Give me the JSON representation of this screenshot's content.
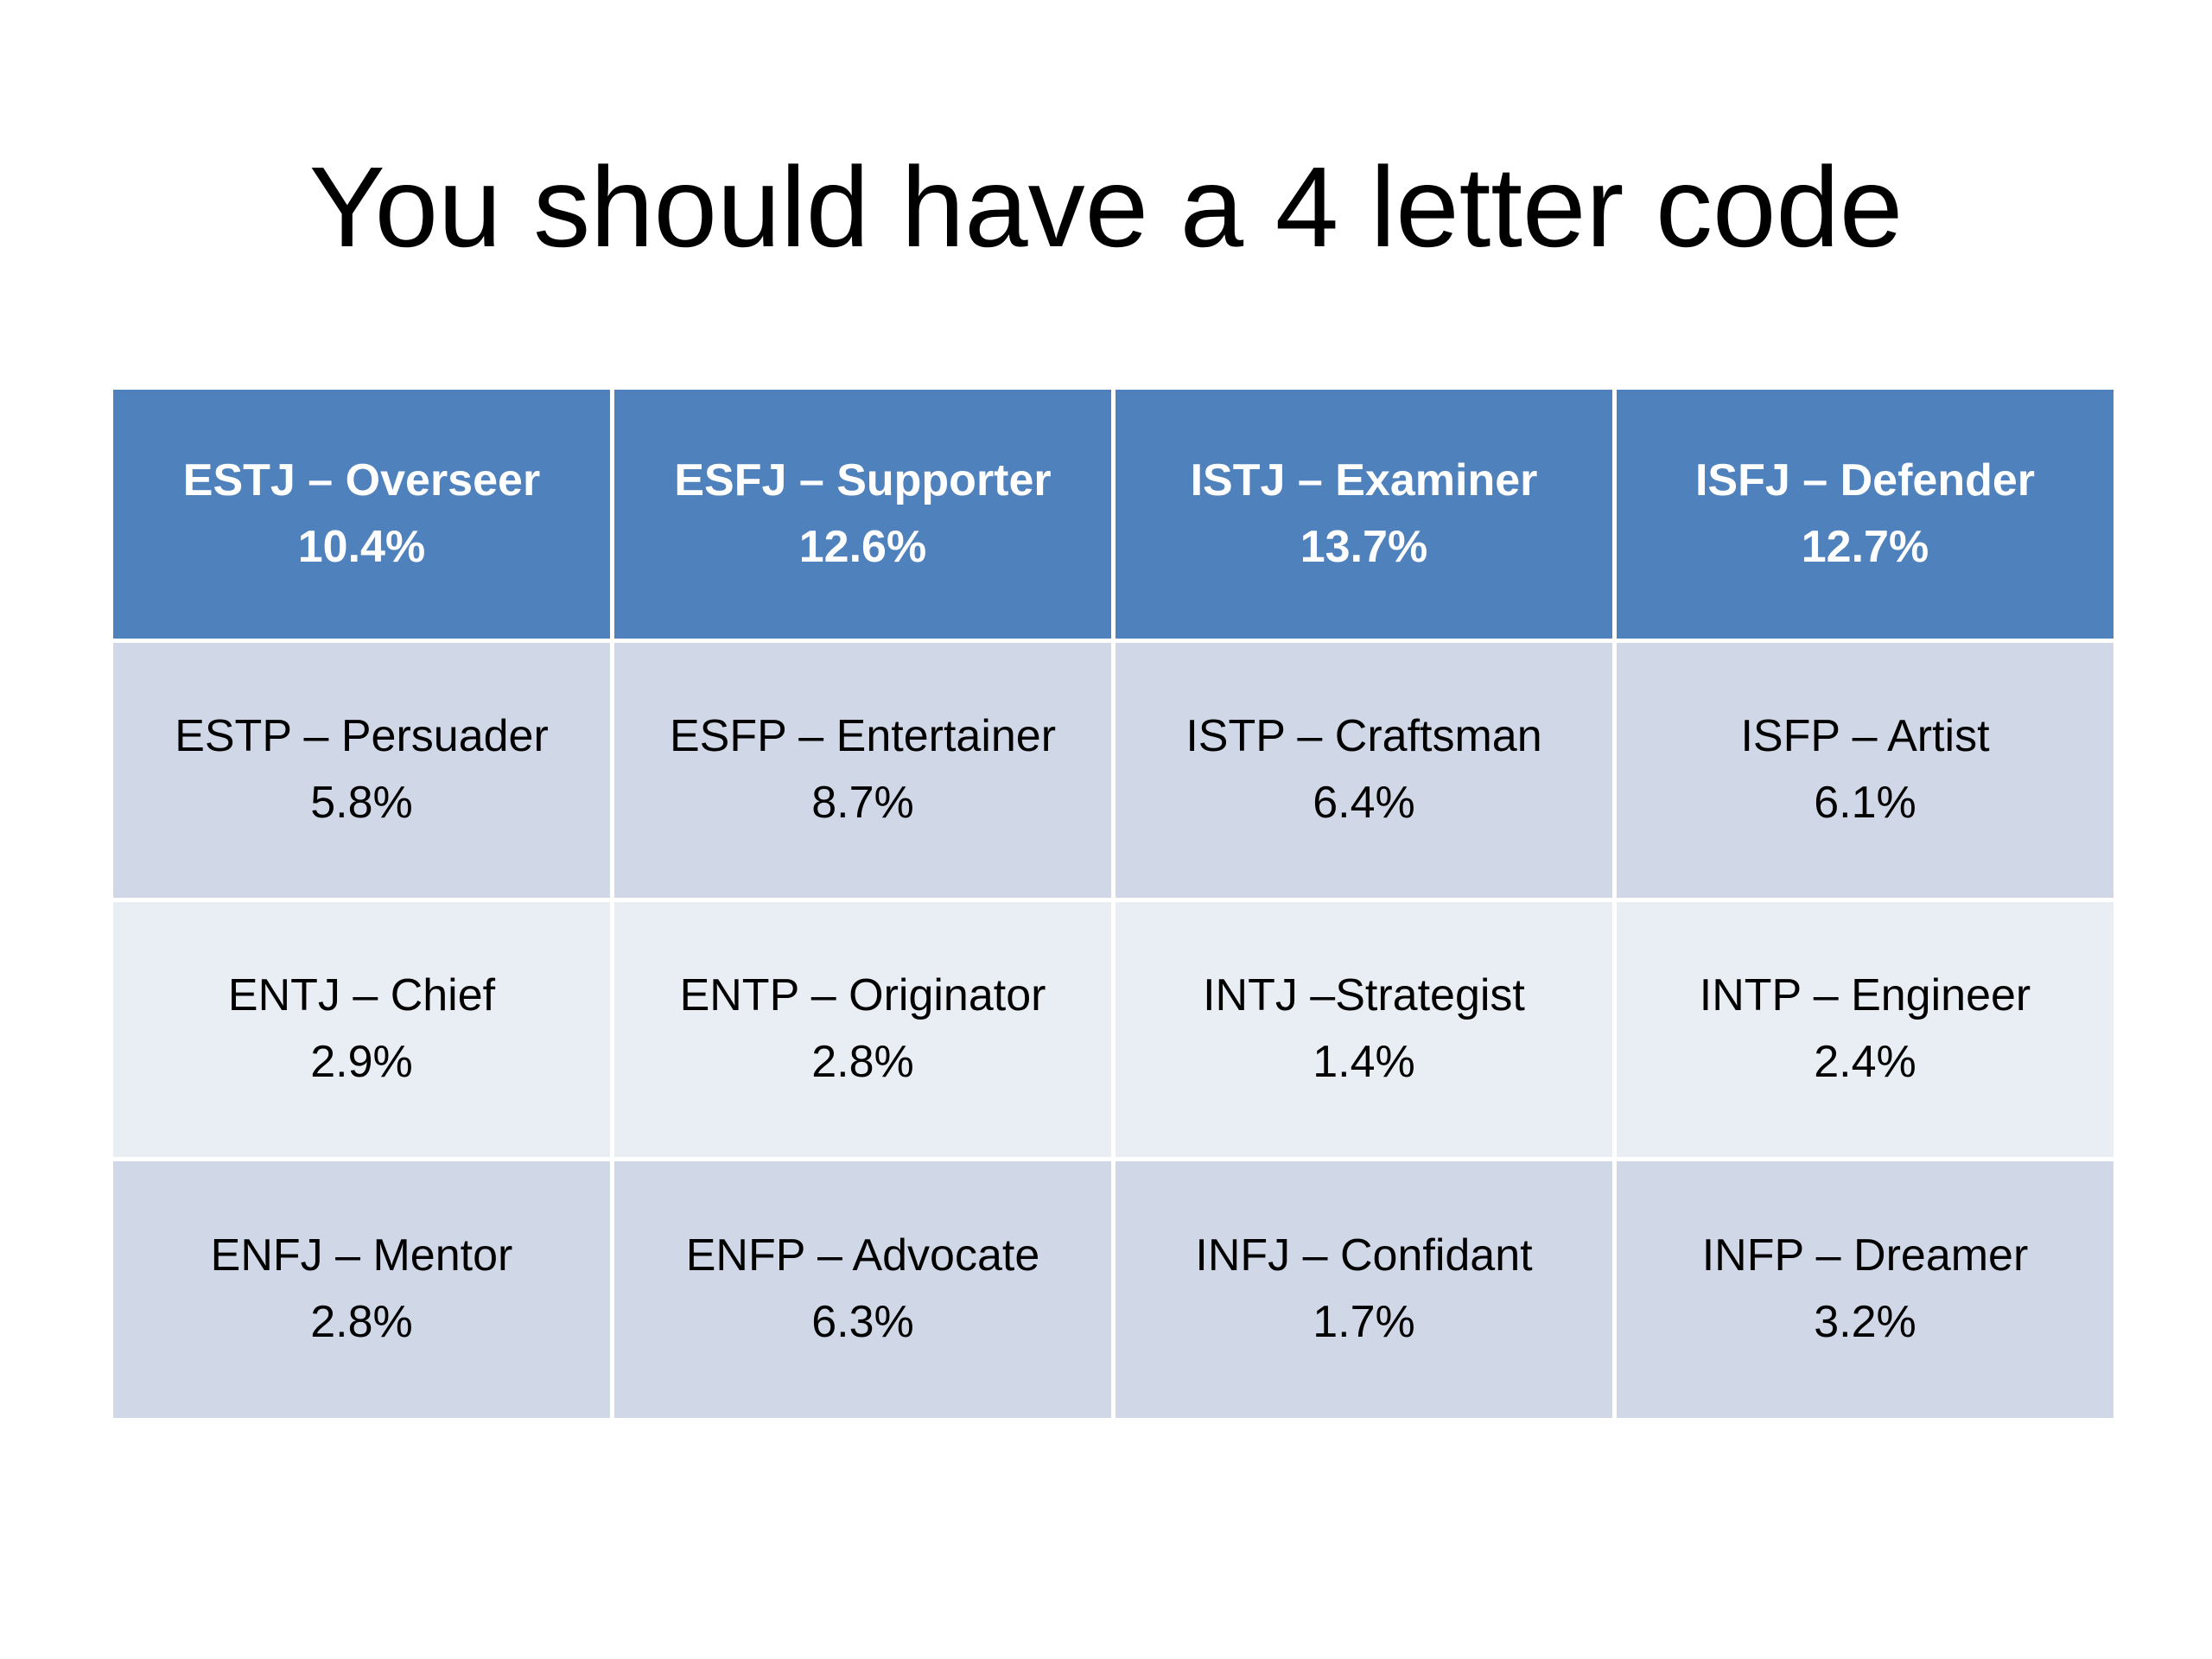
{
  "title": "You should have a 4 letter code",
  "table": {
    "rows": [
      [
        {
          "name": "ESTJ – Overseer",
          "share": "10.4%"
        },
        {
          "name": "ESFJ – Supporter",
          "share": "12.6%"
        },
        {
          "name": "ISTJ – Examiner",
          "share": "13.7%"
        },
        {
          "name": "ISFJ – Defender",
          "share": "12.7%"
        }
      ],
      [
        {
          "name": "ESTP – Persuader",
          "share": "5.8%"
        },
        {
          "name": "ESFP – Entertainer",
          "share": "8.7%"
        },
        {
          "name": "ISTP – Craftsman",
          "share": "6.4%"
        },
        {
          "name": "ISFP – Artist",
          "share": "6.1%"
        }
      ],
      [
        {
          "name": "ENTJ – Chief",
          "share": "2.9%"
        },
        {
          "name": "ENTP – Originator",
          "share": "2.8%"
        },
        {
          "name": "INTJ –Strategist",
          "share": "1.4%"
        },
        {
          "name": "INTP – Engineer",
          "share": "2.4%"
        }
      ],
      [
        {
          "name": "ENFJ – Mentor",
          "share": "2.8%"
        },
        {
          "name": "ENFP – Advocate",
          "share": "6.3%"
        },
        {
          "name": "INFJ – Confidant",
          "share": "1.7%"
        },
        {
          "name": "INFP – Dreamer",
          "share": "3.2%"
        }
      ]
    ]
  }
}
